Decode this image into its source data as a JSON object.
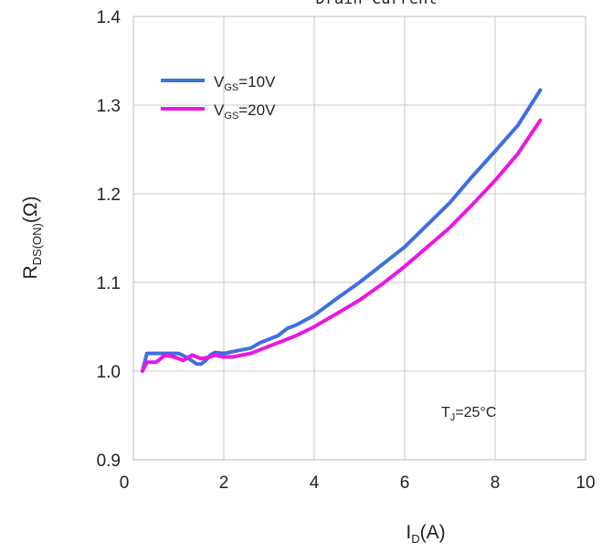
{
  "chart_data": {
    "type": "line",
    "title": "Drain Current",
    "xlabel": {
      "main": "I",
      "sub": "D",
      "rest": "(A)"
    },
    "ylabel": {
      "main": "R",
      "sub": "DS(ON)",
      "rest": "(Ω)"
    },
    "xlim": [
      0,
      10
    ],
    "ylim": [
      0.9,
      1.4
    ],
    "xticks": [
      0,
      2,
      4,
      6,
      8,
      10
    ],
    "yticks": [
      0.9,
      1.0,
      1.1,
      1.2,
      1.3,
      1.4
    ],
    "xtick_labels": [
      "0",
      "2",
      "4",
      "6",
      "8",
      "10"
    ],
    "ytick_labels": [
      "0.9",
      "1.0",
      "1.1",
      "1.2",
      "1.3",
      "1.4"
    ],
    "grid": true,
    "legend_position": "top-left",
    "annotation": {
      "main": "T",
      "sub": "J",
      "rest": "=25°C"
    },
    "series": [
      {
        "name": "VGS=10V",
        "label": {
          "main": "V",
          "sub": "GS",
          "rest": "=10V"
        },
        "color": "#3f6fe0",
        "x": [
          0.2,
          0.3,
          0.5,
          0.8,
          1.0,
          1.2,
          1.4,
          1.5,
          1.6,
          1.7,
          1.8,
          2.0,
          2.2,
          2.4,
          2.6,
          2.8,
          3.0,
          3.2,
          3.4,
          3.6,
          4.0,
          4.5,
          5.0,
          5.5,
          6.0,
          6.5,
          7.0,
          7.5,
          8.0,
          8.5,
          9.0
        ],
        "y": [
          1.0,
          1.02,
          1.02,
          1.02,
          1.02,
          1.015,
          1.008,
          1.008,
          1.012,
          1.018,
          1.021,
          1.02,
          1.022,
          1.024,
          1.026,
          1.032,
          1.036,
          1.04,
          1.048,
          1.052,
          1.063,
          1.082,
          1.1,
          1.12,
          1.14,
          1.165,
          1.19,
          1.22,
          1.248,
          1.277,
          1.317
        ]
      },
      {
        "name": "VGS=20V",
        "label": {
          "main": "V",
          "sub": "GS",
          "rest": "=20V"
        },
        "color": "#e818e0",
        "x": [
          0.2,
          0.3,
          0.5,
          0.7,
          0.9,
          1.1,
          1.3,
          1.5,
          1.7,
          1.8,
          2.0,
          2.2,
          2.4,
          2.6,
          2.8,
          3.0,
          3.2,
          3.4,
          3.6,
          4.0,
          4.5,
          5.0,
          5.5,
          6.0,
          6.5,
          7.0,
          7.5,
          8.0,
          8.5,
          9.0
        ],
        "y": [
          1.0,
          1.01,
          1.01,
          1.018,
          1.016,
          1.012,
          1.018,
          1.014,
          1.016,
          1.018,
          1.016,
          1.016,
          1.018,
          1.02,
          1.024,
          1.028,
          1.032,
          1.036,
          1.04,
          1.05,
          1.065,
          1.08,
          1.098,
          1.118,
          1.14,
          1.162,
          1.188,
          1.215,
          1.245,
          1.283
        ]
      }
    ]
  }
}
